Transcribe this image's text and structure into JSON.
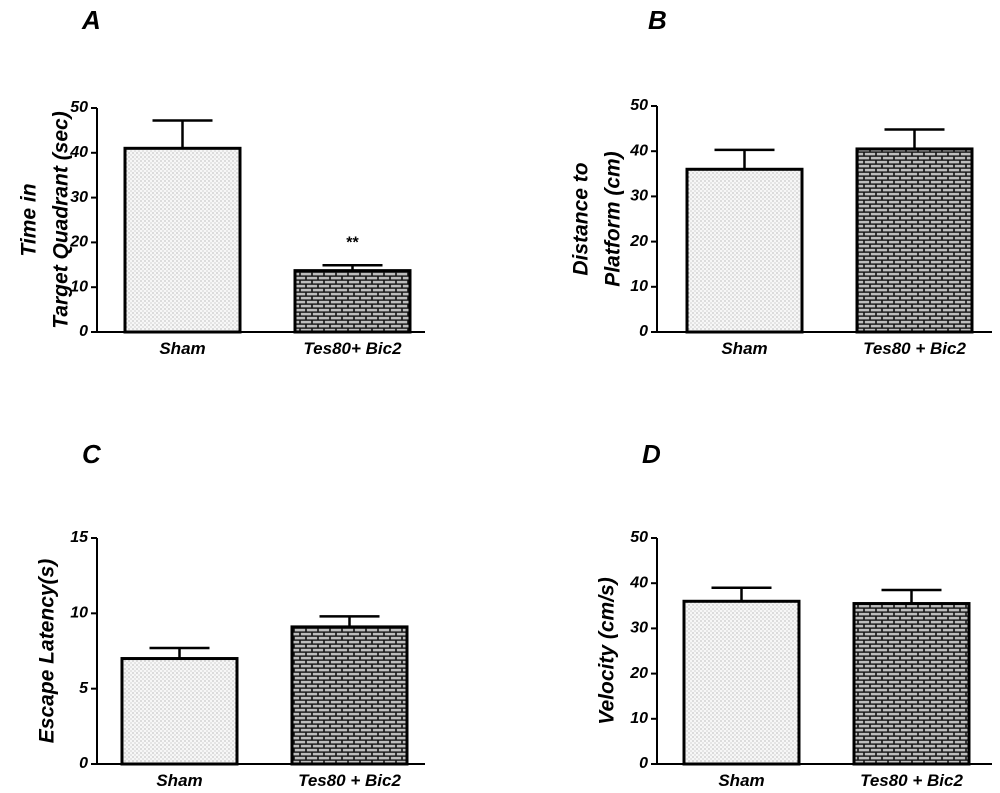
{
  "colors": {
    "bar_outline": "#000000",
    "axis": "#000000",
    "sham_fill": "light-dotted",
    "treat_fill": "dark-brick"
  },
  "chart_data": [
    {
      "panel": "A",
      "type": "bar",
      "categories": [
        "Sham",
        "Tes80+ Bic2"
      ],
      "values": [
        41,
        13.7
      ],
      "errors": [
        6.2,
        1.2
      ],
      "ylabel_lines": [
        "Time in",
        "Target Quadrant (sec)"
      ],
      "ylim": [
        0,
        50
      ],
      "yticks": [
        "0",
        "10",
        "20",
        "30",
        "40",
        "50"
      ],
      "annotations": [
        "",
        "**"
      ],
      "grid": false,
      "legend": "none"
    },
    {
      "panel": "B",
      "type": "bar",
      "categories": [
        "Sham",
        "Tes80 + Bic2"
      ],
      "values": [
        36,
        40.5
      ],
      "errors": [
        4.3,
        4.3
      ],
      "ylabel_lines": [
        "Distance to",
        "Platform (cm)"
      ],
      "ylim": [
        0,
        50
      ],
      "yticks": [
        "0",
        "10",
        "20",
        "30",
        "40",
        "50"
      ],
      "annotations": [
        "",
        ""
      ],
      "grid": false,
      "legend": "none"
    },
    {
      "panel": "C",
      "type": "bar",
      "categories": [
        "Sham",
        "Tes80 + Bic2"
      ],
      "values": [
        7.0,
        9.1
      ],
      "errors": [
        0.7,
        0.7
      ],
      "ylabel_lines": [
        "Escape Latency(s)"
      ],
      "ylim": [
        0,
        15
      ],
      "yticks": [
        "0",
        "5",
        "10",
        "15"
      ],
      "annotations": [
        "",
        ""
      ],
      "grid": false,
      "legend": "none"
    },
    {
      "panel": "D",
      "type": "bar",
      "categories": [
        "Sham",
        "Tes80 + Bic2"
      ],
      "values": [
        36,
        35.5
      ],
      "errors": [
        3.0,
        3.0
      ],
      "ylabel_lines": [
        "Velocity (cm/s)"
      ],
      "ylim": [
        0,
        50
      ],
      "yticks": [
        "0",
        "10",
        "20",
        "30",
        "40",
        "50"
      ],
      "annotations": [
        "",
        ""
      ],
      "grid": false,
      "legend": "none"
    }
  ]
}
